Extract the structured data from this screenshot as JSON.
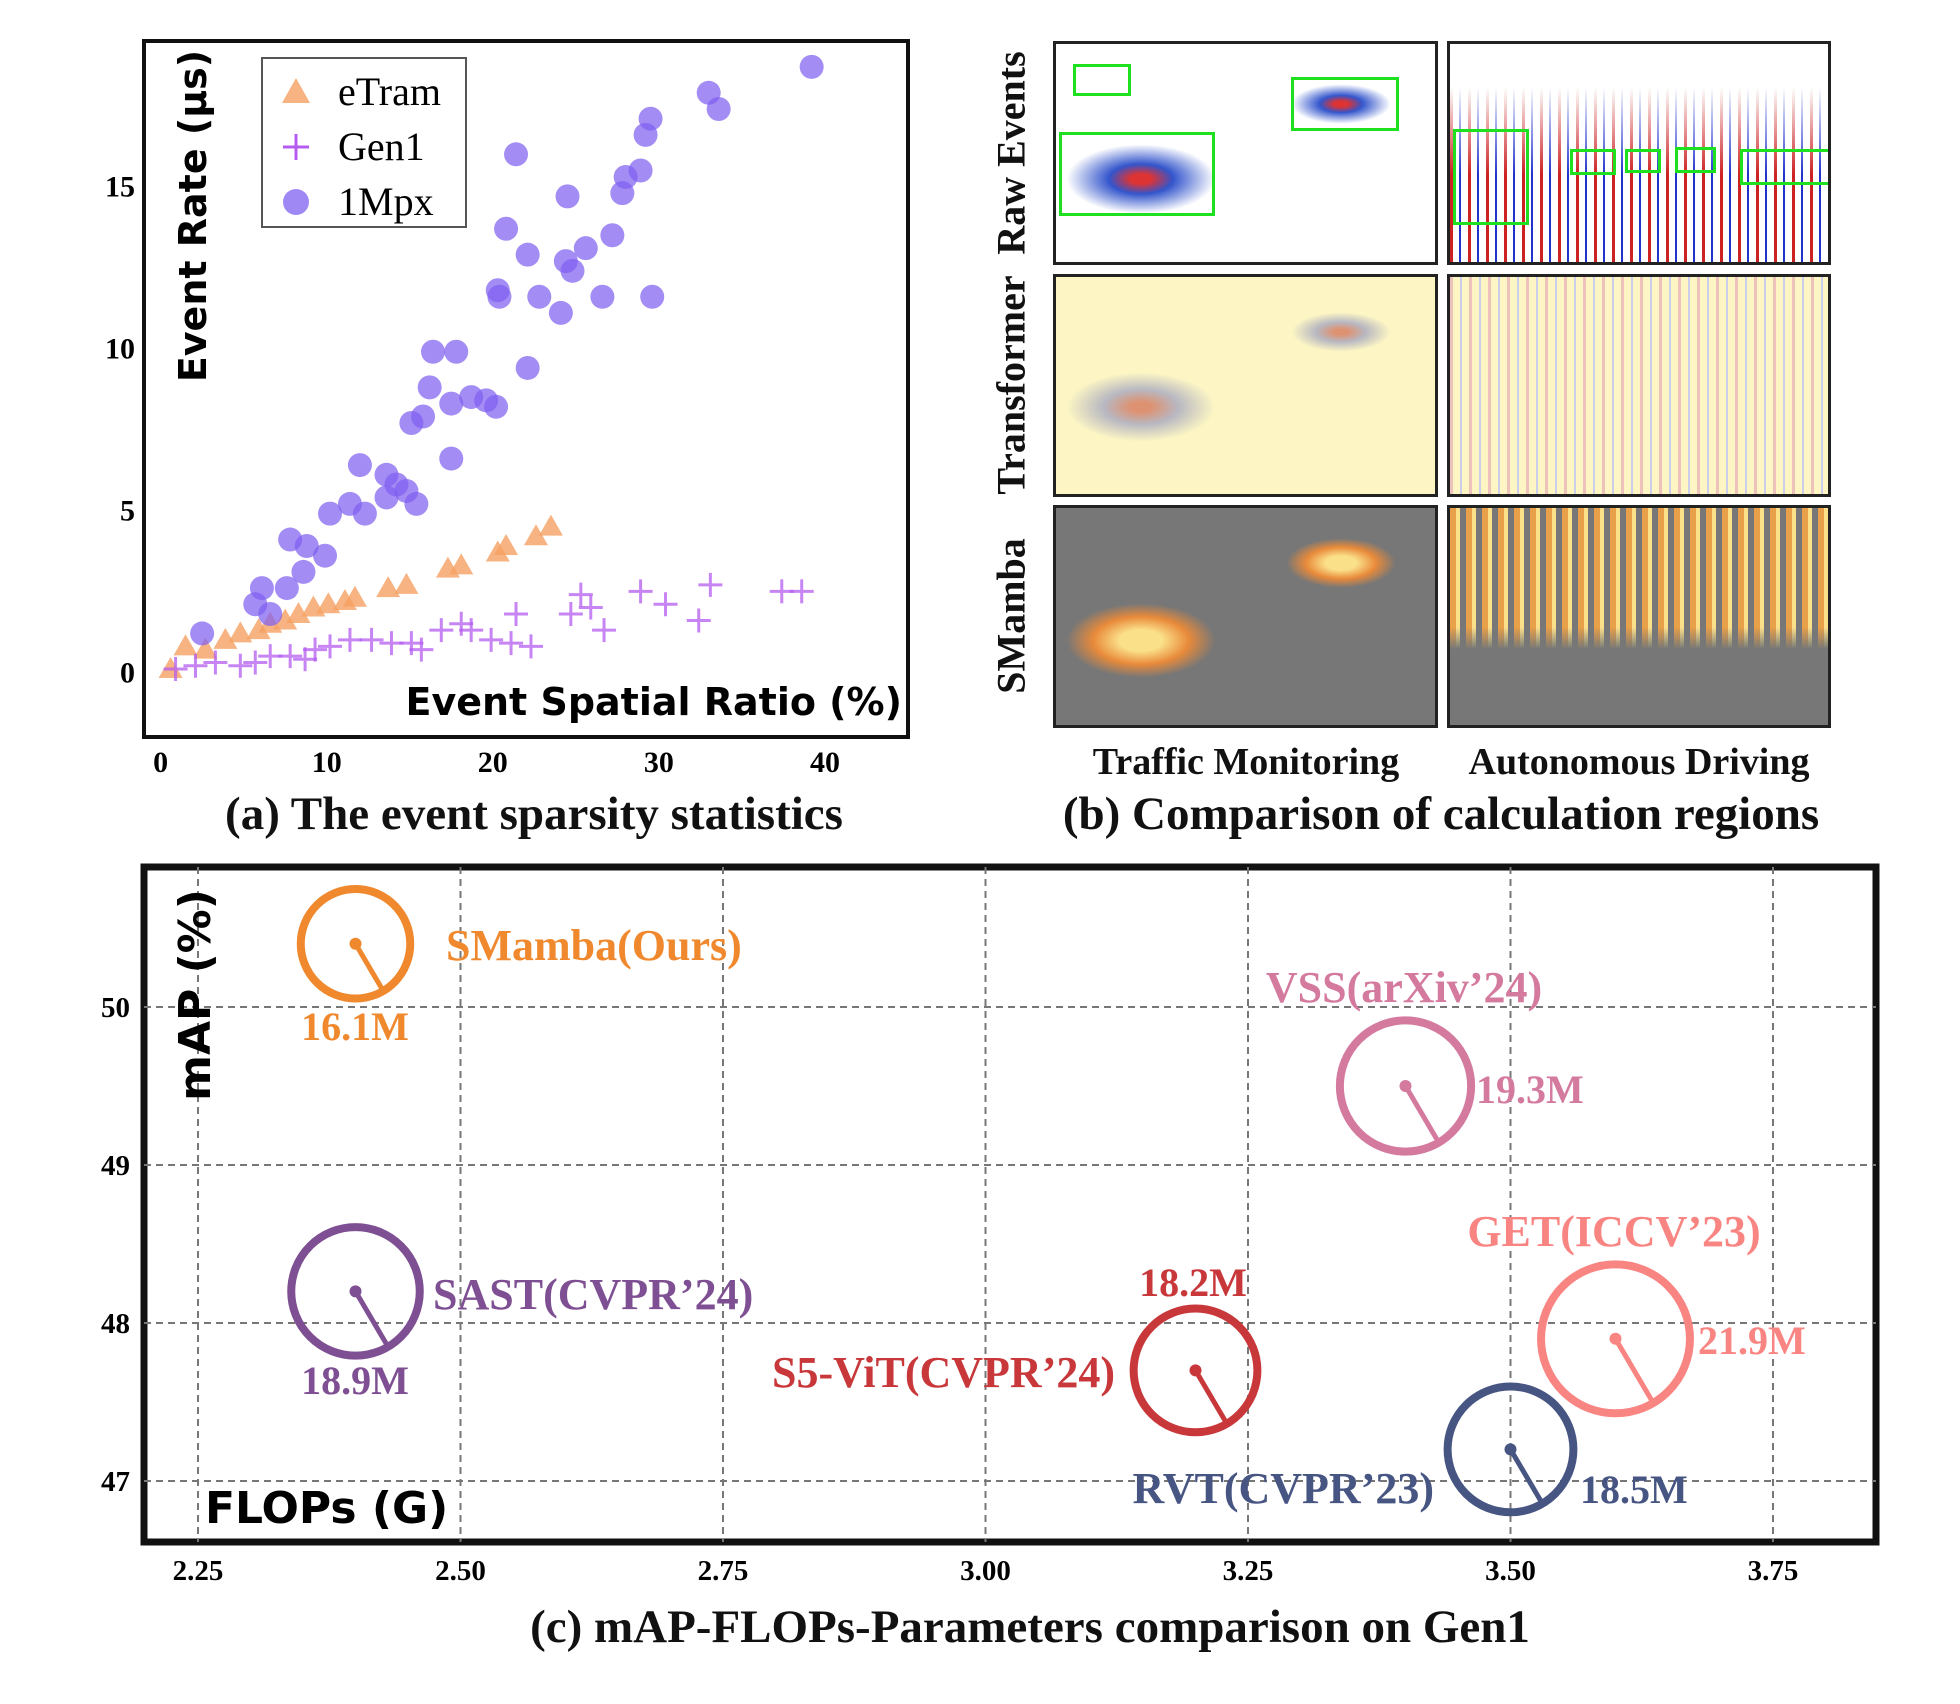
{
  "panel_a": {
    "caption": "(a) The event sparsity statistics"
  },
  "panel_b": {
    "caption": "(b) Comparison of calculation regions",
    "row_labels": [
      "Raw Events",
      "Transformer",
      "SMamba"
    ],
    "column_labels": [
      "Traffic Monitoring",
      "Autonomous Driving"
    ]
  },
  "panel_c": {
    "caption": "(c) mAP-FLOPs-Parameters comparison on Gen1"
  },
  "chart_data": [
    {
      "type": "scatter",
      "xlabel": "Event Spatial Ratio (%)",
      "ylabel": "Event Rate (μs)",
      "xlim": [
        -1,
        45
      ],
      "ylim": [
        -2,
        19.5
      ],
      "xticks": [
        "0",
        "10",
        "20",
        "30",
        "40"
      ],
      "yticks": [
        "0",
        "5",
        "10",
        "15"
      ],
      "legend_position": "top-left",
      "grid": false,
      "series": [
        {
          "name": "eTram",
          "marker": "triangle",
          "color": "#f5a062",
          "points": [
            [
              0.6,
              0.1
            ],
            [
              1.5,
              0.8
            ],
            [
              2.7,
              0.7
            ],
            [
              3.9,
              1.0
            ],
            [
              4.8,
              1.2
            ],
            [
              5.9,
              1.3
            ],
            [
              6.6,
              1.5
            ],
            [
              7.5,
              1.6
            ],
            [
              8.3,
              1.8
            ],
            [
              9.2,
              2.0
            ],
            [
              10.1,
              2.1
            ],
            [
              11.1,
              2.2
            ],
            [
              11.7,
              2.3
            ],
            [
              13.7,
              2.6
            ],
            [
              14.8,
              2.7
            ],
            [
              17.3,
              3.2
            ],
            [
              18.1,
              3.3
            ],
            [
              20.3,
              3.7
            ],
            [
              20.8,
              3.9
            ],
            [
              22.6,
              4.2
            ],
            [
              23.5,
              4.5
            ]
          ]
        },
        {
          "name": "Gen1",
          "marker": "plus",
          "color": "#b45cf0",
          "points": [
            [
              0.9,
              0.1
            ],
            [
              2.1,
              0.2
            ],
            [
              3.3,
              0.3
            ],
            [
              4.8,
              0.2
            ],
            [
              5.7,
              0.3
            ],
            [
              6.6,
              0.5
            ],
            [
              7.8,
              0.5
            ],
            [
              8.7,
              0.4
            ],
            [
              9.3,
              0.7
            ],
            [
              10.2,
              0.8
            ],
            [
              11.4,
              1.0
            ],
            [
              12.7,
              1.0
            ],
            [
              13.9,
              0.9
            ],
            [
              15.1,
              0.9
            ],
            [
              15.7,
              0.7
            ],
            [
              16.9,
              1.3
            ],
            [
              18.1,
              1.5
            ],
            [
              18.7,
              1.3
            ],
            [
              19.9,
              1.0
            ],
            [
              21.1,
              0.9
            ],
            [
              21.4,
              1.8
            ],
            [
              22.3,
              0.8
            ],
            [
              24.7,
              1.8
            ],
            [
              25.3,
              2.4
            ],
            [
              25.9,
              2.0
            ],
            [
              26.7,
              1.3
            ],
            [
              28.9,
              2.5
            ],
            [
              30.4,
              2.1
            ],
            [
              32.4,
              1.6
            ],
            [
              33.1,
              2.7
            ],
            [
              37.4,
              2.5
            ],
            [
              38.6,
              2.5
            ]
          ]
        },
        {
          "name": "1Mpx",
          "marker": "circle",
          "color": "#7f5ff0",
          "points": [
            [
              39.2,
              18.7
            ],
            [
              33.0,
              17.9
            ],
            [
              33.6,
              17.4
            ],
            [
              29.5,
              17.1
            ],
            [
              29.2,
              16.6
            ],
            [
              21.4,
              16.0
            ],
            [
              28.9,
              15.5
            ],
            [
              28.0,
              15.3
            ],
            [
              27.8,
              14.8
            ],
            [
              24.5,
              14.7
            ],
            [
              20.8,
              13.7
            ],
            [
              27.2,
              13.5
            ],
            [
              22.1,
              12.9
            ],
            [
              25.6,
              13.1
            ],
            [
              24.4,
              12.7
            ],
            [
              24.8,
              12.4
            ],
            [
              20.3,
              11.8
            ],
            [
              20.4,
              11.6
            ],
            [
              22.8,
              11.6
            ],
            [
              26.6,
              11.6
            ],
            [
              29.6,
              11.6
            ],
            [
              24.1,
              11.1
            ],
            [
              16.4,
              9.9
            ],
            [
              17.8,
              9.9
            ],
            [
              22.1,
              9.4
            ],
            [
              16.2,
              8.8
            ],
            [
              17.5,
              8.3
            ],
            [
              18.7,
              8.5
            ],
            [
              19.6,
              8.4
            ],
            [
              20.2,
              8.2
            ],
            [
              15.1,
              7.7
            ],
            [
              15.8,
              7.9
            ],
            [
              17.5,
              6.6
            ],
            [
              12.0,
              6.4
            ],
            [
              13.6,
              6.1
            ],
            [
              14.2,
              5.8
            ],
            [
              14.8,
              5.6
            ],
            [
              15.4,
              5.2
            ],
            [
              13.6,
              5.4
            ],
            [
              11.4,
              5.2
            ],
            [
              10.2,
              4.9
            ],
            [
              12.3,
              4.9
            ],
            [
              7.8,
              4.1
            ],
            [
              8.8,
              3.9
            ],
            [
              9.9,
              3.6
            ],
            [
              8.6,
              3.1
            ],
            [
              7.6,
              2.6
            ],
            [
              6.1,
              2.6
            ],
            [
              5.7,
              2.1
            ],
            [
              6.6,
              1.8
            ],
            [
              2.5,
              1.2
            ]
          ]
        }
      ]
    },
    {
      "type": "scatter",
      "subtype": "bubble",
      "xlabel": "FLOPs (G)",
      "ylabel": "mAP (%)",
      "xlim": [
        2.2,
        3.85
      ],
      "ylim": [
        46.6,
        50.9
      ],
      "xticks": [
        "2.25",
        "2.50",
        "2.75",
        "3.00",
        "3.25",
        "3.50",
        "3.75"
      ],
      "yticks": [
        "47",
        "48",
        "49",
        "50"
      ],
      "grid": true,
      "points": [
        {
          "name": "SMamba(Ours)",
          "flops": 2.4,
          "map": 50.4,
          "params": 16.1,
          "params_label": "16.1M",
          "color": "#f0892e"
        },
        {
          "name": "VSS(arXiv’24)",
          "flops": 3.4,
          "map": 49.5,
          "params": 19.3,
          "params_label": "19.3M",
          "color": "#d47a9f"
        },
        {
          "name": "SAST(CVPR’24)",
          "flops": 2.4,
          "map": 48.2,
          "params": 18.9,
          "params_label": "18.9M",
          "color": "#7e4f92"
        },
        {
          "name": "S5-ViT(CVPR’24)",
          "flops": 3.2,
          "map": 47.7,
          "params": 18.2,
          "params_label": "18.2M",
          "color": "#c8373a"
        },
        {
          "name": "GET(ICCV’23)",
          "flops": 3.6,
          "map": 47.9,
          "params": 21.9,
          "params_label": "21.9M",
          "color": "#f98583"
        },
        {
          "name": "RVT(CVPR’23)",
          "flops": 3.5,
          "map": 47.2,
          "params": 18.5,
          "params_label": "18.5M",
          "color": "#475583"
        }
      ]
    }
  ]
}
